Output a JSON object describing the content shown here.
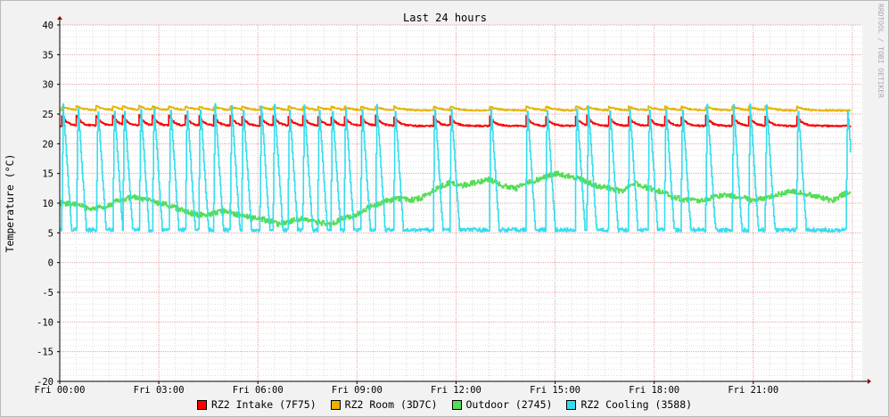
{
  "chart_data": {
    "type": "line",
    "title": "Last 24 hours",
    "ylabel": "Temperature (°C)",
    "watermark": "RRDTOOL / TOBI OETIKER",
    "ylim": [
      -20,
      40
    ],
    "y_ticks": [
      "40",
      "35",
      "30",
      "25",
      "20",
      "15",
      "10",
      "5",
      "0",
      "-5",
      "-10",
      "-15",
      "-20"
    ],
    "xlim_hours": [
      0,
      24.3
    ],
    "x_ticks": [
      {
        "hour": 0,
        "label": "Fri 00:00"
      },
      {
        "hour": 3,
        "label": "Fri 03:00"
      },
      {
        "hour": 6,
        "label": "Fri 06:00"
      },
      {
        "hour": 9,
        "label": "Fri 09:00"
      },
      {
        "hour": 12,
        "label": "Fri 12:00"
      },
      {
        "hour": 15,
        "label": "Fri 15:00"
      },
      {
        "hour": 18,
        "label": "Fri 18:00"
      },
      {
        "hour": 21,
        "label": "Fri 21:00"
      }
    ],
    "grid": true,
    "legend_position": "bottom",
    "series": [
      {
        "name": "RZ2 Intake (7F75)",
        "color": "#ff0000",
        "baseline": 23.0,
        "cycle_peak": 24.8,
        "cycle_hours": [
          0.05,
          0.5,
          1.1,
          1.6,
          1.9,
          2.4,
          2.8,
          3.3,
          3.8,
          4.2,
          4.65,
          5.15,
          5.5,
          6.05,
          6.45,
          6.9,
          7.35,
          7.8,
          8.2,
          8.6,
          9.1,
          9.55,
          10.1,
          11.3,
          11.8,
          13.0,
          14.1,
          14.7,
          15.6,
          15.95,
          16.6,
          17.2,
          17.8,
          18.3,
          18.8,
          19.55,
          20.35,
          20.85,
          21.35,
          22.3
        ]
      },
      {
        "name": "RZ2 Room (3D7C)",
        "color": "#e6b400",
        "baseline": 25.6,
        "cycle_peak": 26.3,
        "cycle_hours": [
          0.05,
          0.5,
          1.1,
          1.6,
          1.9,
          2.4,
          2.8,
          3.3,
          3.8,
          4.2,
          4.65,
          5.15,
          5.5,
          6.05,
          6.45,
          6.9,
          7.35,
          7.8,
          8.2,
          8.6,
          9.1,
          9.55,
          10.1,
          11.3,
          11.8,
          13.0,
          14.1,
          14.7,
          15.6,
          15.95,
          16.6,
          17.2,
          17.8,
          18.3,
          18.8,
          19.55,
          20.35,
          20.85,
          21.35,
          22.3
        ]
      },
      {
        "name": "Outdoor (2745)",
        "color": "#55dd55",
        "x_hours": [
          0,
          0.5,
          1.0,
          1.4,
          1.8,
          2.2,
          2.6,
          3.0,
          3.4,
          3.8,
          4.2,
          4.6,
          5.0,
          5.4,
          5.8,
          6.2,
          6.6,
          7.0,
          7.4,
          7.8,
          8.2,
          8.6,
          9.0,
          9.4,
          9.8,
          10.2,
          10.6,
          11.0,
          11.4,
          11.8,
          12.2,
          12.6,
          13.0,
          13.4,
          13.8,
          14.2,
          14.6,
          15.0,
          15.4,
          15.8,
          16.2,
          16.6,
          17.0,
          17.4,
          17.8,
          18.2,
          18.6,
          19.0,
          19.4,
          19.8,
          20.2,
          20.6,
          21.0,
          21.4,
          21.8,
          22.2,
          22.6,
          23.0,
          23.4,
          23.7,
          23.95
        ],
        "values": [
          10,
          9.8,
          9.0,
          9.5,
          10.5,
          11.0,
          10.5,
          10.0,
          9.5,
          8.5,
          8.0,
          8.2,
          8.8,
          8.0,
          7.5,
          7.2,
          6.5,
          7.0,
          7.5,
          6.8,
          6.5,
          7.5,
          8.0,
          9.5,
          10.2,
          10.8,
          10.5,
          11.0,
          12.5,
          13.5,
          13.0,
          13.5,
          14.0,
          13.0,
          12.5,
          13.5,
          14.2,
          15.0,
          14.5,
          14.0,
          13.0,
          12.5,
          12.0,
          13.5,
          12.5,
          12.0,
          11.0,
          10.5,
          10.5,
          11.0,
          11.5,
          11.0,
          10.5,
          11.0,
          11.5,
          12.0,
          11.5,
          11.0,
          10.5,
          11.5,
          12.0
        ]
      },
      {
        "name": "RZ2 Cooling (3588)",
        "color": "#33ddee",
        "baseline": 5.5,
        "cycle_peak": 26.5,
        "cycle_hours": [
          0.05,
          0.5,
          1.1,
          1.6,
          1.9,
          2.4,
          2.8,
          3.3,
          3.8,
          4.2,
          4.65,
          5.15,
          5.5,
          6.05,
          6.45,
          6.9,
          7.35,
          7.8,
          8.2,
          8.6,
          9.1,
          9.55,
          10.1,
          11.3,
          11.8,
          13.0,
          14.1,
          14.7,
          15.6,
          15.95,
          16.6,
          17.2,
          17.8,
          18.3,
          18.8,
          19.55,
          20.35,
          20.85,
          21.35,
          22.3,
          23.8
        ]
      }
    ]
  }
}
